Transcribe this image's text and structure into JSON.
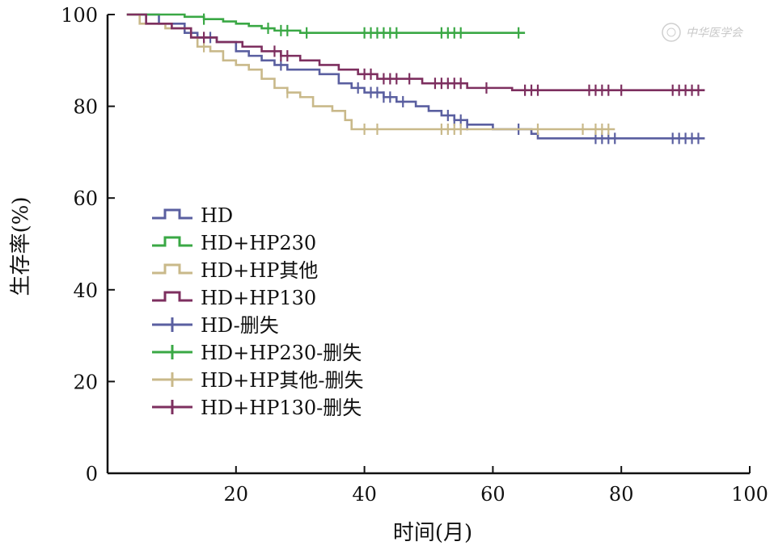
{
  "chart_data": {
    "type": "line",
    "subtype": "kaplan-meier",
    "xlabel": "时间(月)",
    "ylabel": "生存率(%)",
    "xlim": [
      0,
      100
    ],
    "ylim": [
      0,
      100
    ],
    "xticks": [
      "20",
      "40",
      "60",
      "80",
      "100"
    ],
    "yticks": [
      "0",
      "20",
      "40",
      "60",
      "80",
      "100"
    ],
    "legend_position": "center-left",
    "series": [
      {
        "name": "HD",
        "censor_label": "HD-删失",
        "color": "#5a5fa0",
        "x": [
          3,
          8,
          12,
          14,
          17,
          20,
          22,
          24,
          26,
          28,
          30,
          33,
          36,
          38,
          40,
          43,
          45,
          48,
          50,
          52,
          54,
          56,
          58,
          60,
          62,
          64,
          66,
          67,
          93
        ],
        "y": [
          100,
          98,
          96,
          95,
          94,
          92,
          91,
          90,
          89,
          88,
          88,
          87,
          85,
          84,
          83,
          82,
          81,
          80,
          79,
          78,
          77,
          76,
          76,
          75,
          75,
          75,
          74,
          73,
          73
        ],
        "censor_x": [
          16,
          27,
          39,
          41,
          42,
          43,
          44,
          46,
          53,
          54,
          55,
          56,
          64,
          76,
          77,
          78,
          79,
          88,
          89,
          90,
          91,
          92
        ]
      },
      {
        "name": "HD+HP230",
        "censor_label": "HD+HP230-删失",
        "color": "#3aa845",
        "x": [
          3,
          10,
          12,
          15,
          18,
          20,
          22,
          24,
          26,
          30,
          65
        ],
        "y": [
          100,
          100,
          99.5,
          99,
          98.5,
          98,
          97.5,
          97,
          96.5,
          96,
          96
        ],
        "censor_x": [
          15,
          25,
          27,
          28,
          31,
          40,
          41,
          42,
          43,
          44,
          45,
          52,
          53,
          54,
          55,
          64
        ]
      },
      {
        "name": "HD+HP其他",
        "censor_label": "HD+HP其他-删失",
        "color": "#c9b98a",
        "x": [
          3,
          5,
          9,
          13,
          14,
          16,
          18,
          20,
          22,
          24,
          26,
          28,
          30,
          32,
          35,
          37,
          38,
          79
        ],
        "y": [
          100,
          98,
          97,
          95,
          93,
          92,
          90,
          89,
          88,
          86,
          84,
          83,
          82,
          80,
          79,
          77,
          75,
          75
        ],
        "censor_x": [
          15,
          28,
          40,
          42,
          52,
          53,
          54,
          55,
          67,
          74,
          76,
          77,
          78
        ]
      },
      {
        "name": "HD+HP130",
        "censor_label": "HD+HP130-删失",
        "color": "#7d2f5f",
        "x": [
          3,
          6,
          10,
          13,
          17,
          21,
          24,
          27,
          30,
          33,
          36,
          39,
          42,
          46,
          49,
          52,
          56,
          60,
          63,
          93
        ],
        "y": [
          100,
          98,
          97,
          95,
          94,
          93,
          92,
          91,
          90,
          89,
          88,
          87,
          86,
          86,
          85,
          85,
          84,
          84,
          83.5,
          83.5
        ],
        "censor_x": [
          15,
          26,
          27,
          28,
          40,
          41,
          43,
          44,
          45,
          47,
          51,
          52,
          53,
          54,
          55,
          59,
          65,
          66,
          67,
          75,
          76,
          77,
          78,
          80,
          88,
          89,
          90,
          91,
          92
        ]
      }
    ]
  },
  "watermark": "中华医学会"
}
